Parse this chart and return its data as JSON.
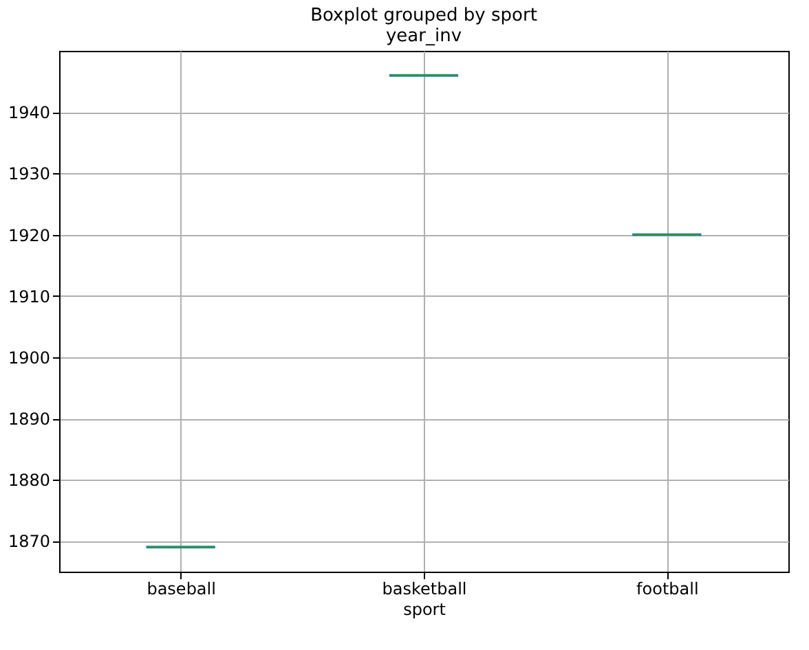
{
  "chart_data": {
    "type": "box",
    "title": "Boxplot grouped by sport",
    "subtitle": "year_inv",
    "xlabel": "sport",
    "categories": [
      "baseball",
      "basketball",
      "football"
    ],
    "boxes": [
      {
        "low": 1869,
        "q1": 1869,
        "median": 1869,
        "q3": 1869,
        "high": 1869
      },
      {
        "low": 1946,
        "q1": 1946,
        "median": 1946,
        "q3": 1946,
        "high": 1946
      },
      {
        "low": 1920,
        "q1": 1920,
        "median": 1920,
        "q3": 1920,
        "high": 1920
      }
    ],
    "color": "#1f77b4",
    "ylim": [
      1865,
      1950
    ],
    "yticks": [
      1870,
      1880,
      1890,
      1900,
      1910,
      1920,
      1930,
      1940
    ],
    "grid": true
  }
}
